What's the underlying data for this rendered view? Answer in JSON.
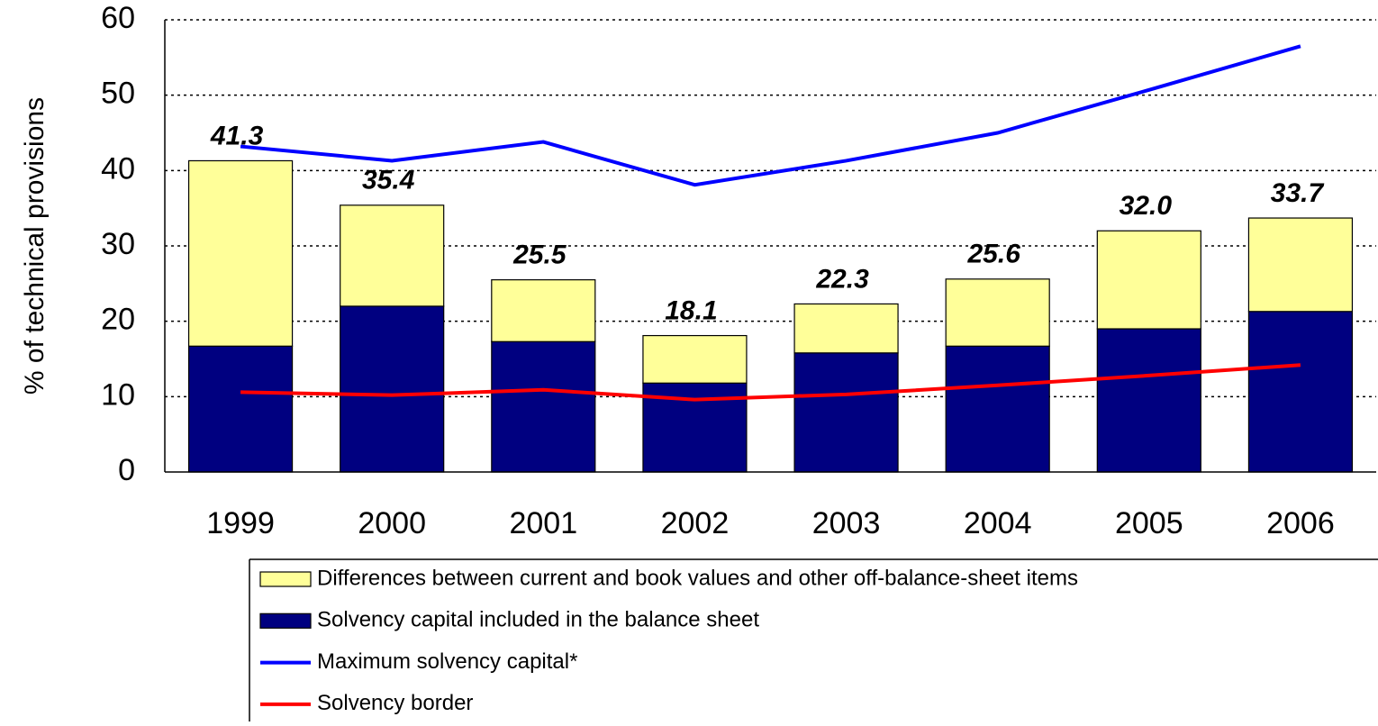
{
  "chart_data": {
    "type": "bar",
    "stacked": true,
    "y_label": "% of technical provisions",
    "categories": [
      "1999",
      "2000",
      "2001",
      "2002",
      "2003",
      "2004",
      "2005",
      "2006"
    ],
    "series": [
      {
        "name": "Differences between current and book values and other off-balance-sheet items",
        "type": "bar",
        "color": "#ffff99",
        "values": [
          24.6,
          13.4,
          8.2,
          6.3,
          6.5,
          8.9,
          13.0,
          12.4
        ]
      },
      {
        "name": "Solvency capital included in the balance sheet",
        "type": "bar",
        "color": "#000080",
        "values": [
          16.7,
          22.0,
          17.3,
          11.8,
          15.8,
          16.7,
          19.0,
          21.3
        ]
      },
      {
        "name": "Maximum solvency capital*",
        "type": "line",
        "color": "#0000ff",
        "values": [
          43.2,
          41.3,
          43.8,
          38.1,
          41.3,
          45.0,
          50.7,
          56.5
        ]
      },
      {
        "name": "Solvency border",
        "type": "line",
        "color": "#ff0000",
        "values": [
          10.6,
          10.2,
          10.9,
          9.6,
          10.3,
          11.5,
          12.8,
          14.2
        ]
      }
    ],
    "total_labels": [
      "41.3",
      "35.4",
      "25.5",
      "18.1",
      "22.3",
      "25.6",
      "32.0",
      "33.7"
    ],
    "ylim": [
      0,
      60
    ],
    "yticks": [
      0,
      10,
      20,
      30,
      40,
      50,
      60
    ],
    "grid": true
  }
}
